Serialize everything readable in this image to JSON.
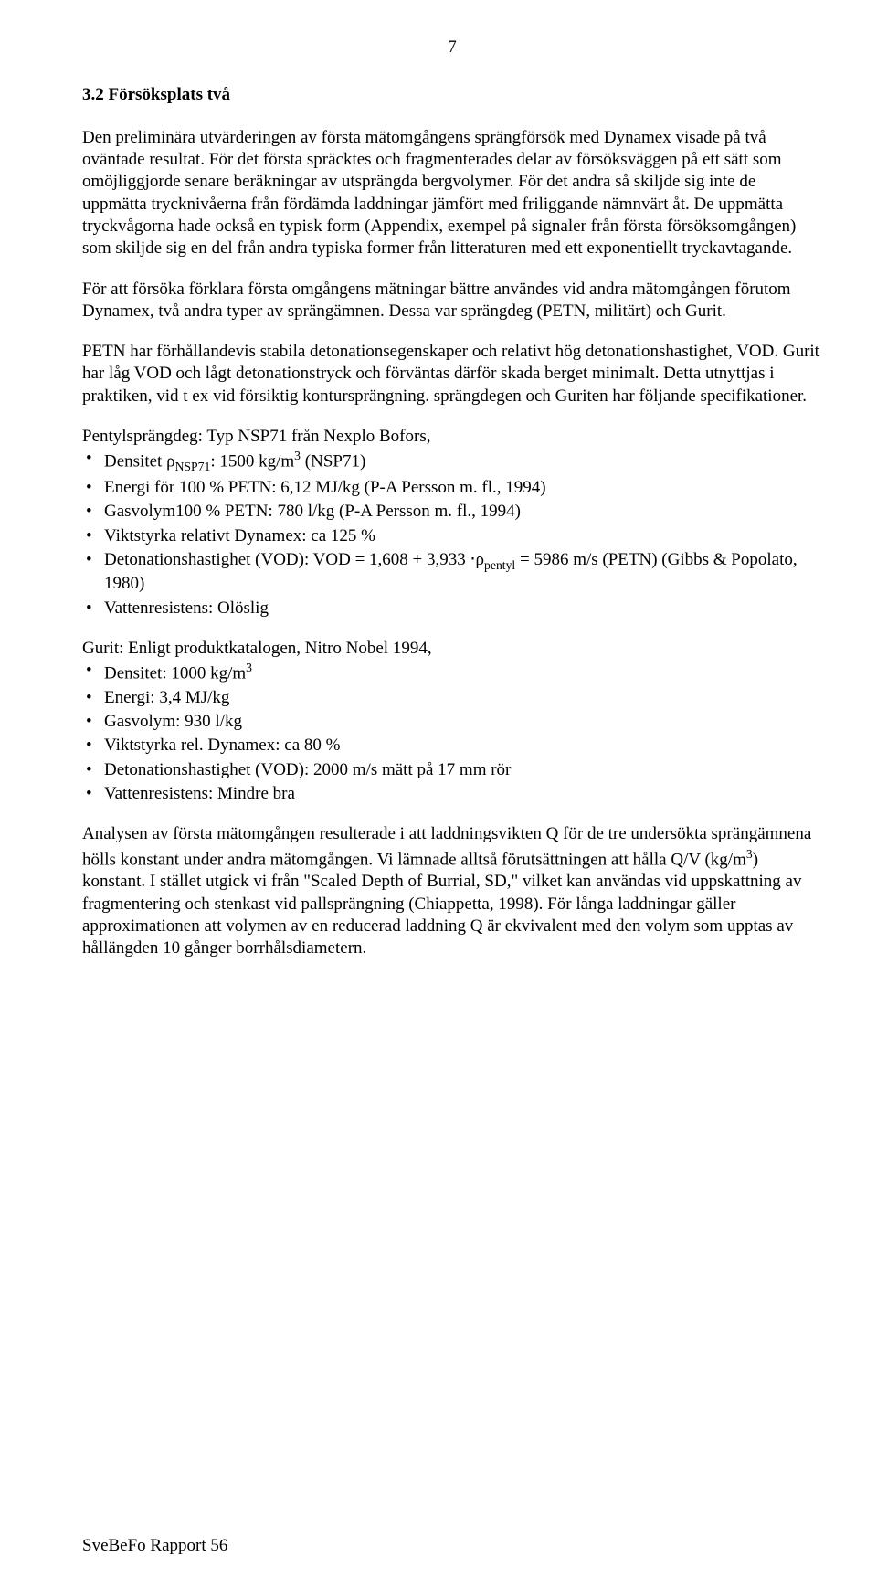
{
  "page_number": "7",
  "heading": "3.2 Försöksplats två",
  "para1": "Den preliminära utvärderingen av första mätomgångens sprängförsök med Dynamex visade på två oväntade resultat. För det första spräcktes och fragmenterades delar av försöksväggen på ett sätt som omöjliggjorde senare beräkningar av utsprängda bergvolymer. För det andra så skiljde sig inte de uppmätta trycknivåerna från fördämda laddningar jämfört med friliggande nämnvärt åt. De uppmätta tryckvågorna hade också en typisk form (Appendix, exempel på signaler från första försöksomgången) som skiljde sig en del från andra typiska former från litteraturen med ett exponentiellt tryckavtagande.",
  "para2": "För att försöka förklara första omgångens mätningar bättre användes vid andra mätomgången förutom Dynamex, två andra typer av sprängämnen. Dessa var sprängdeg (PETN, militärt) och Gurit.",
  "para3": "PETN har förhållandevis stabila detonationsegenskaper och relativt hög detonationshastighet, VOD. Gurit har låg VOD och lågt detonationstryck och förväntas därför skada berget minimalt. Detta utnyttjas i praktiken, vid t ex vid försiktig kontursprängning. sprängdegen och Guriten har följande specifikationer.",
  "pentyl_intro": "Pentylsprängdeg: Typ NSP71 från Nexplo Bofors,",
  "pentyl_items": [
    "Densitet ρ<span class=\"sub\">NSP71</span>: 1500 kg/m<span class=\"sup\">3</span> (NSP71)",
    "Energi för 100 % PETN: 6,12 MJ/kg (P-A Persson m. fl., 1994)",
    "Gasvolym100 % PETN: 780 l/kg (P-A Persson m. fl., 1994)",
    "Viktstyrka relativt Dynamex: ca 125 %",
    "Detonationshastighet (VOD): VOD = 1,608 + 3,933 ⋅ρ<span class=\"sub\">pentyl</span> = 5986 m/s (PETN) (Gibbs & Popolato, 1980)",
    "Vattenresistens: Olöslig"
  ],
  "gurit_intro": "Gurit: Enligt produktkatalogen, Nitro Nobel 1994,",
  "gurit_items": [
    "Densitet: 1000 kg/m<span class=\"sup\">3</span>",
    "Energi: 3,4 MJ/kg",
    "Gasvolym: 930 l/kg",
    "Viktstyrka rel. Dynamex: ca 80 %",
    "Detonationshastighet (VOD): 2000 m/s mätt på 17 mm rör",
    "Vattenresistens: Mindre bra"
  ],
  "para4": "Analysen av första mätomgången resulterade i att laddningsvikten Q för de tre undersökta sprängämnena hölls konstant under andra mätomgången. Vi lämnade alltså förutsättningen att hålla Q/V (kg/m<span class=\"sup\">3</span>) konstant. I stället utgick vi från \"Scaled Depth of Burrial, SD,\" vilket kan användas vid uppskattning av fragmentering och stenkast vid pallsprängning (Chiappetta, 1998). För långa laddningar gäller approximationen att volymen av en reducerad laddning Q är ekvivalent med den volym som upptas av hållängden 10 gånger borrhålsdiametern.",
  "footer": "SveBeFo Rapport 56"
}
